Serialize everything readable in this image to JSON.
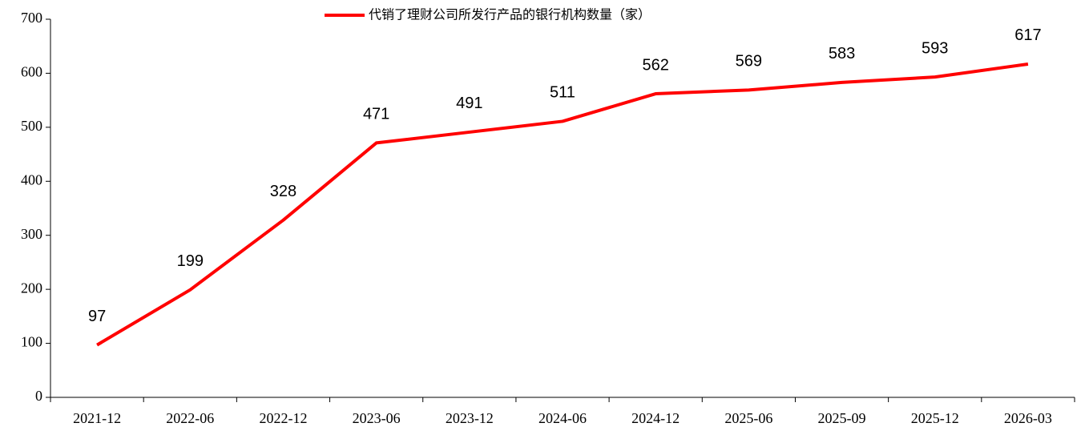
{
  "chart_data": {
    "type": "line",
    "categories": [
      "2021-12",
      "2022-06",
      "2022-12",
      "2023-06",
      "2023-12",
      "2024-06",
      "2024-12",
      "2025-06",
      "2025-09",
      "2025-12",
      "2026-03"
    ],
    "series": [
      {
        "name": "代销了理财公司所发行产品的银行机构数量（家）",
        "color": "#ff0000",
        "values": [
          97,
          199,
          328,
          471,
          491,
          511,
          562,
          569,
          583,
          593,
          617
        ]
      }
    ],
    "ylim": [
      0,
      700
    ],
    "yticks": [
      0,
      100,
      200,
      300,
      400,
      500,
      600,
      700
    ],
    "legend": "top",
    "grid": false
  }
}
